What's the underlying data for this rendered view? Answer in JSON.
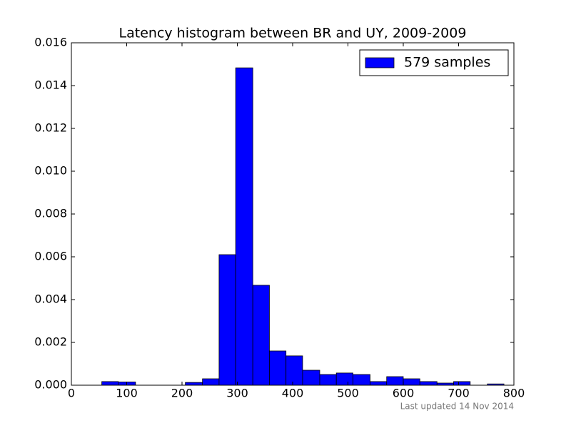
{
  "chart_data": {
    "type": "histogram",
    "title": "Latency histogram between BR and UY, 2009-2009",
    "bins": [
      55,
      85,
      116,
      146,
      176,
      206,
      237,
      267,
      297,
      328,
      358,
      388,
      418,
      449,
      479,
      509,
      540,
      570,
      600,
      630,
      661,
      691,
      721,
      752,
      782
    ],
    "series": [
      {
        "name": "579 samples",
        "color": "#0000ff",
        "values": [
          0.00017,
          0.00015,
          0,
          0,
          0,
          0.00013,
          0.0003,
          0.0061,
          0.01483,
          0.00467,
          0.0016,
          0.00137,
          0.0007,
          0.0005,
          0.00057,
          0.0005,
          0.00017,
          0.0004,
          0.0003,
          0.00017,
          0.0001,
          0.00017,
          0,
          6e-05
        ]
      }
    ],
    "xlim": [
      0,
      800
    ],
    "xticks": [
      0,
      100,
      200,
      300,
      400,
      500,
      600,
      700,
      800
    ],
    "ylim": [
      0,
      0.016
    ],
    "yticks": [
      {
        "value": 0,
        "label": "0.000"
      },
      {
        "value": 0.002,
        "label": "0.002"
      },
      {
        "value": 0.004,
        "label": "0.004"
      },
      {
        "value": 0.006,
        "label": "0.006"
      },
      {
        "value": 0.008,
        "label": "0.008"
      },
      {
        "value": 0.01,
        "label": "0.010"
      },
      {
        "value": 0.012,
        "label": "0.012"
      },
      {
        "value": 0.014,
        "label": "0.014"
      },
      {
        "value": 0.016,
        "label": "0.016"
      }
    ],
    "legend": "upper right",
    "footnote": "Last updated 14 Nov 2014"
  }
}
